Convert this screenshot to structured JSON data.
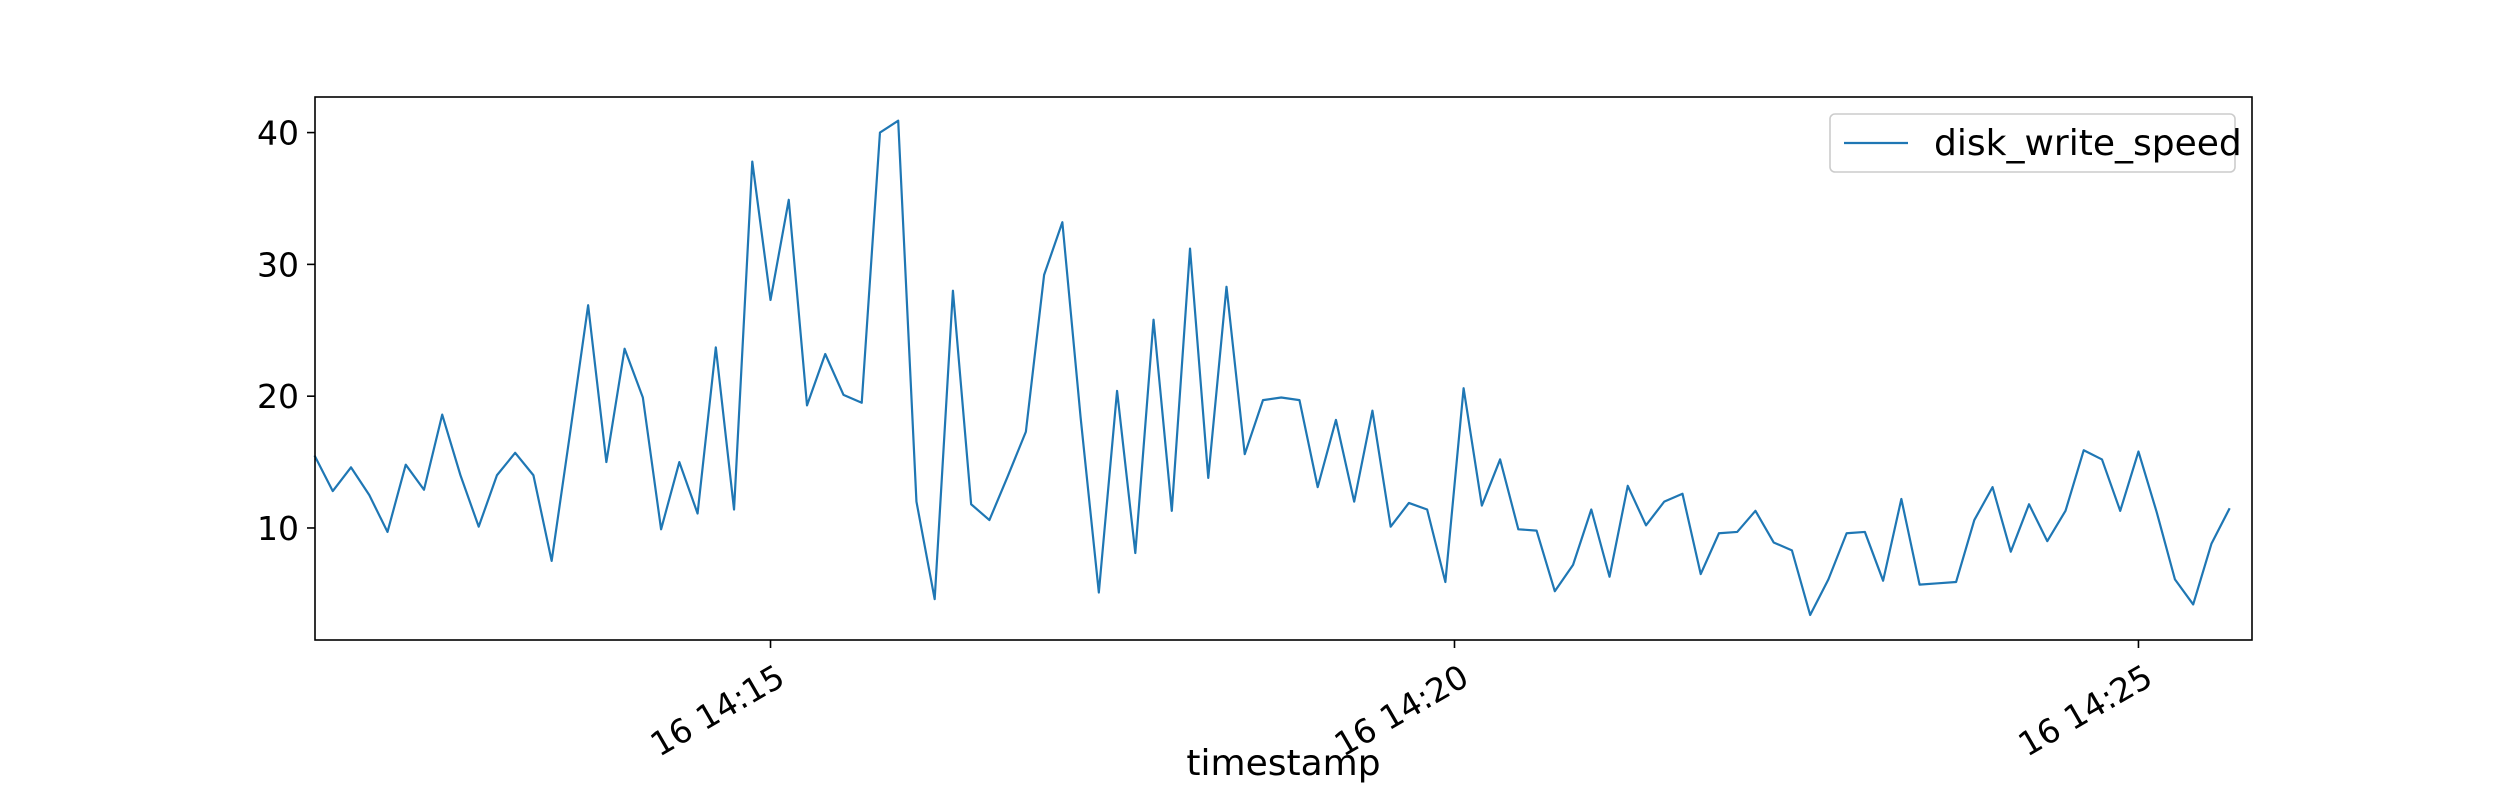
{
  "chart_data": {
    "type": "line",
    "xlabel": "timestamp",
    "ylabel": "",
    "x_axis": {
      "scale": "time",
      "range_minutes": [
        11.67,
        25.83
      ],
      "tick_labels": [
        {
          "label": "16 14:15",
          "minute": 15
        },
        {
          "label": "16 14:20",
          "minute": 20
        },
        {
          "label": "16 14:25",
          "minute": 25
        }
      ],
      "tick_label_rotation": "30 degrees"
    },
    "y_axis": {
      "range": [
        1.5,
        42.7
      ],
      "ticks": [
        10,
        20,
        30,
        40
      ]
    },
    "grid": false,
    "legend": {
      "position": "top-right"
    },
    "color": "#1f77b4",
    "series": [
      {
        "name": "disk_write_speed",
        "x_start": "16 14:11:40",
        "x_step_seconds": 8,
        "values": [
          15.5,
          12.8,
          14.6,
          12.5,
          9.7,
          14.8,
          12.9,
          18.6,
          14.0,
          10.1,
          14.0,
          15.7,
          14.0,
          7.5,
          17.1,
          26.9,
          15.0,
          23.6,
          19.9,
          9.9,
          15.0,
          11.1,
          23.7,
          11.4,
          37.8,
          27.3,
          34.9,
          19.3,
          23.2,
          20.1,
          19.5,
          40.0,
          40.9,
          12.0,
          4.6,
          28.0,
          11.8,
          10.6,
          13.9,
          17.3,
          29.2,
          33.2,
          18.4,
          5.1,
          20.4,
          8.1,
          25.8,
          11.3,
          31.2,
          13.8,
          28.3,
          15.6,
          19.7,
          19.9,
          19.7,
          13.1,
          18.2,
          12.0,
          18.9,
          10.1,
          11.9,
          11.4,
          5.9,
          20.6,
          11.7,
          15.2,
          9.9,
          9.8,
          5.2,
          7.2,
          11.4,
          6.3,
          13.2,
          10.2,
          12.0,
          12.6,
          6.5,
          9.6,
          9.7,
          11.3,
          8.9,
          8.3,
          3.4,
          6.1,
          9.6,
          9.7,
          6.0,
          12.2,
          5.7,
          5.8,
          5.9,
          10.6,
          13.1,
          8.2,
          11.8,
          9.0,
          11.3,
          15.9,
          15.2,
          11.3,
          15.8,
          11.2,
          6.1,
          4.2,
          8.8,
          11.5
        ]
      }
    ]
  }
}
